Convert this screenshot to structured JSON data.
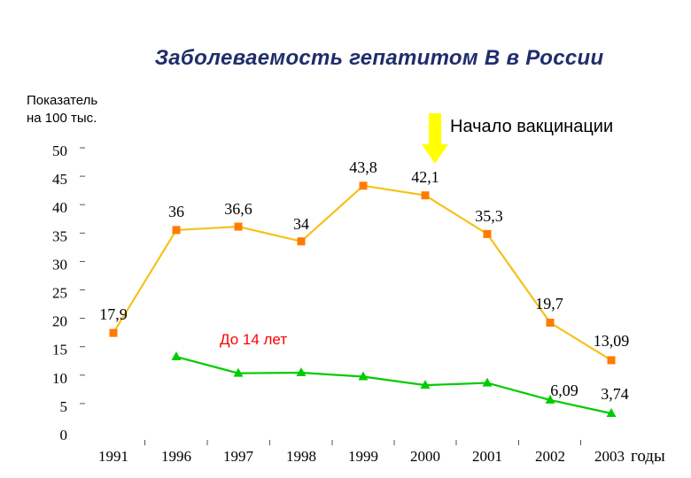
{
  "chart_data": {
    "type": "line",
    "title": "Заболеваемость гепатитом В в России",
    "ylabel": "Показатель на 100 тыс.",
    "ylabel_lines": [
      "Показатель",
      "на 100 тыс."
    ],
    "xlabel": "годы",
    "categories": [
      "1991",
      "1996",
      "1997",
      "1998",
      "1999",
      "2000",
      "2001",
      "2002",
      "2003"
    ],
    "ylim": [
      0,
      50
    ],
    "yticks": [
      0,
      5,
      10,
      15,
      20,
      25,
      30,
      35,
      40,
      45,
      50
    ],
    "series": [
      {
        "color": "#f5c21b",
        "marker": "square",
        "marker_color": "#ff7b00",
        "values": [
          17.9,
          36,
          36.6,
          34,
          43.8,
          42.1,
          35.3,
          19.7,
          13.09
        ],
        "labels": [
          "17,9",
          "36",
          "36,6",
          "34",
          "43,8",
          "42,1",
          "35,3",
          "19,7",
          "13,09"
        ]
      },
      {
        "name": "До 14 лет",
        "color": "#00cc00",
        "marker": "triangle",
        "values": [
          null,
          13.7,
          10.8,
          10.9,
          10.2,
          8.7,
          9.1,
          6.09,
          3.74
        ],
        "labels": [
          null,
          null,
          null,
          null,
          null,
          null,
          null,
          "6,09",
          "3,74"
        ]
      }
    ],
    "annotations": [
      {
        "text": "Начало вакцинации",
        "category": "2000",
        "arrow_color": "#ffff00"
      }
    ]
  }
}
